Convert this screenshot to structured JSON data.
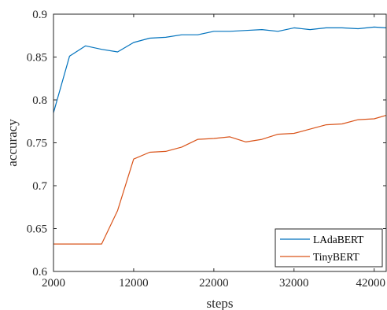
{
  "chart_data": {
    "type": "line",
    "xlabel": "steps",
    "ylabel": "accuracy",
    "xlim": [
      2000,
      43500
    ],
    "ylim": [
      0.6,
      0.9
    ],
    "xticks": [
      2000,
      12000,
      22000,
      32000,
      42000
    ],
    "yticks": [
      0.6,
      0.65,
      0.7,
      0.75,
      0.8,
      0.85,
      0.9
    ],
    "xtick_labels": [
      "2000",
      "12000",
      "22000",
      "32000",
      "42000"
    ],
    "ytick_labels": [
      "0.6",
      "0.65",
      "0.7",
      "0.75",
      "0.8",
      "0.85",
      "0.9"
    ],
    "grid": false,
    "legend_position": "bottom-right",
    "series": [
      {
        "name": "LAdaBERT",
        "color": "#0072BD",
        "x": [
          2000,
          4000,
          6000,
          8000,
          10000,
          12000,
          14000,
          16000,
          18000,
          20000,
          22000,
          24000,
          26000,
          28000,
          30000,
          32000,
          34000,
          36000,
          38000,
          40000,
          42000,
          43500
        ],
        "y": [
          0.785,
          0.851,
          0.863,
          0.859,
          0.856,
          0.867,
          0.872,
          0.873,
          0.876,
          0.876,
          0.88,
          0.88,
          0.881,
          0.882,
          0.88,
          0.884,
          0.882,
          0.884,
          0.884,
          0.883,
          0.885,
          0.884
        ]
      },
      {
        "name": "TinyBERT",
        "color": "#D95319",
        "x": [
          2000,
          4000,
          6000,
          8000,
          10000,
          12000,
          14000,
          16000,
          18000,
          20000,
          22000,
          24000,
          26000,
          28000,
          30000,
          32000,
          34000,
          36000,
          38000,
          40000,
          42000,
          43500
        ],
        "y": [
          0.632,
          0.632,
          0.632,
          0.632,
          0.671,
          0.731,
          0.739,
          0.74,
          0.745,
          0.754,
          0.755,
          0.757,
          0.751,
          0.754,
          0.76,
          0.761,
          0.766,
          0.771,
          0.772,
          0.777,
          0.778,
          0.782
        ]
      }
    ]
  }
}
